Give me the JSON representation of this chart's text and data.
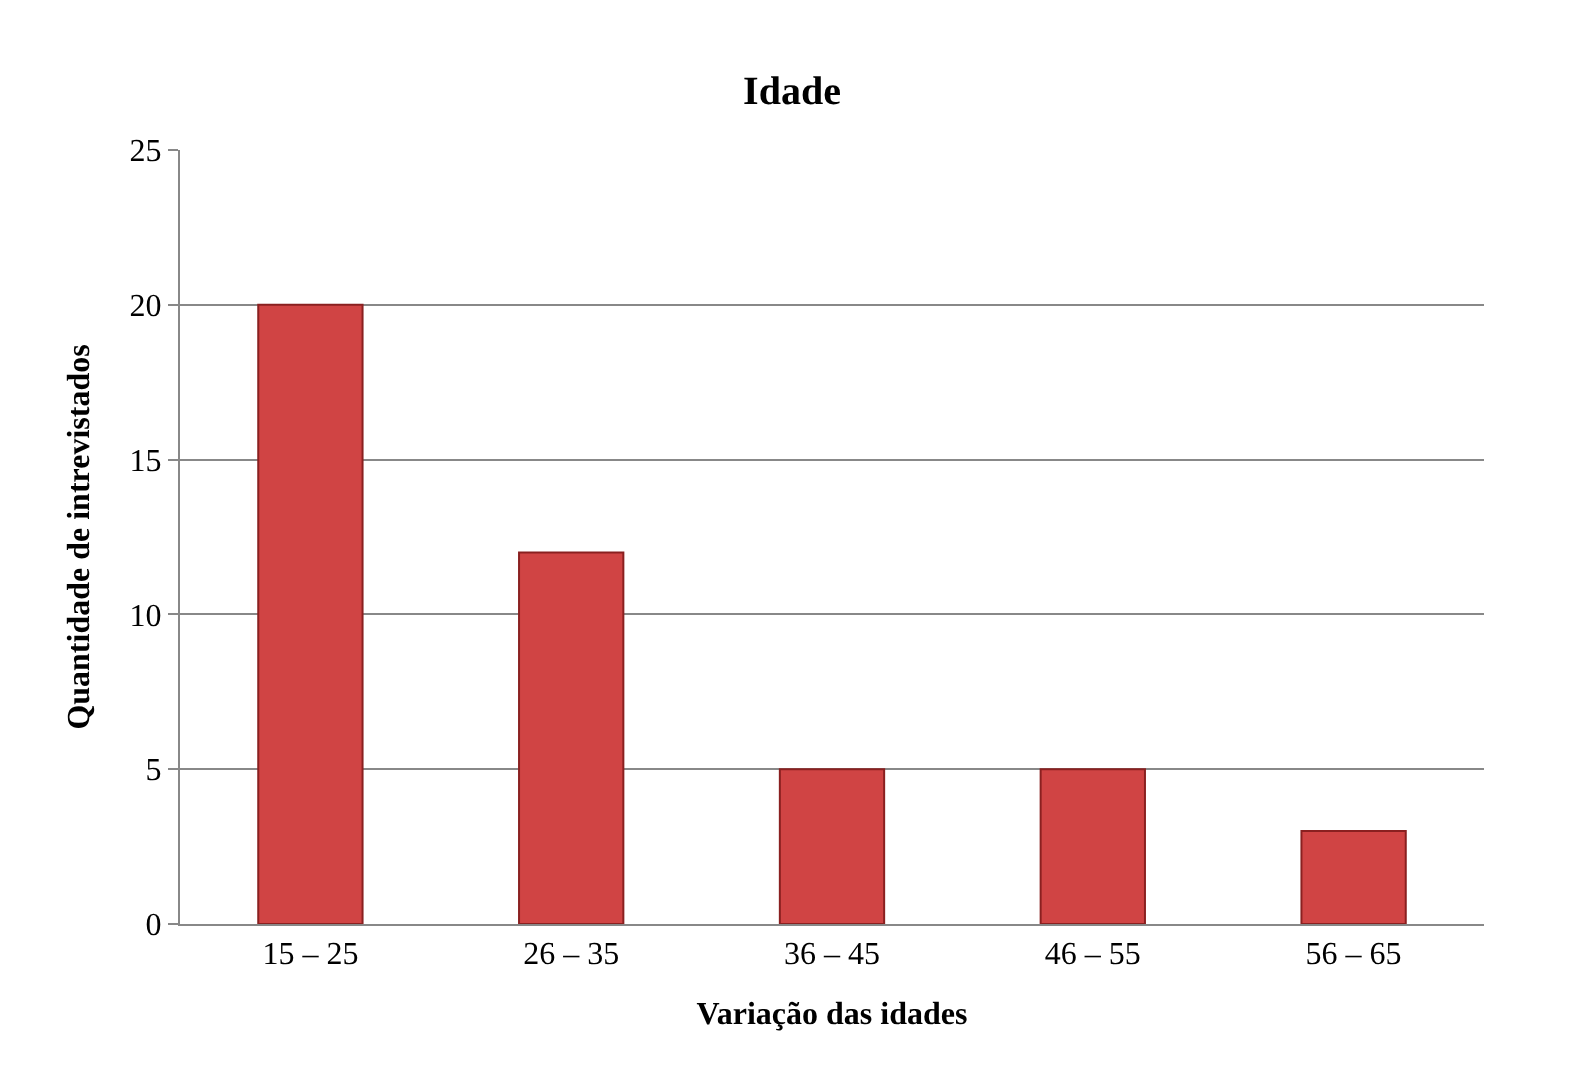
{
  "chart_data": {
    "type": "bar",
    "title": "Idade",
    "xlabel": "Variação das idades",
    "ylabel": "Quantidade de intrevistados",
    "categories": [
      "15 – 25",
      "26 – 35",
      "36 – 45",
      "46 – 55",
      "56 – 65"
    ],
    "values": [
      20,
      12,
      5,
      5,
      3
    ],
    "color": "#d04444",
    "ylim": [
      0,
      25
    ],
    "yticks": [
      0,
      5,
      10,
      15,
      20,
      25
    ],
    "grid": "y"
  }
}
